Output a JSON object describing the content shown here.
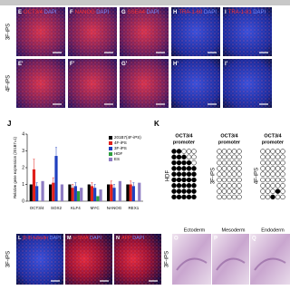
{
  "rows": [
    {
      "label": "3F-iPS",
      "panels": [
        {
          "letter": "E",
          "stain": "OCT3/4",
          "counterstain": "DAPI"
        },
        {
          "letter": "F",
          "stain": "NANOG",
          "counterstain": "DAPI"
        },
        {
          "letter": "G",
          "stain": "SSEA4",
          "counterstain": "DAPI"
        },
        {
          "letter": "H",
          "stain": "TRA-1-60",
          "counterstain": "DAPI"
        },
        {
          "letter": "I",
          "stain": "TRA-1-81",
          "counterstain": "DAPI"
        }
      ]
    },
    {
      "label": "4F-iPS",
      "panels": [
        {
          "letter": "E'"
        },
        {
          "letter": "F'"
        },
        {
          "letter": "G'"
        },
        {
          "letter": "H'"
        },
        {
          "letter": "I'"
        }
      ]
    }
  ],
  "panel_j": {
    "letter": "J",
    "chart": {
      "type": "bar",
      "y_label": "Relative gene expression (201B7=1)",
      "categories": [
        "OCT3/4",
        "SOX2",
        "KLF4",
        "MYC",
        "NANOG",
        "REX1"
      ],
      "series": [
        {
          "name": "201B7(4F-iPS)",
          "color": "#000000",
          "values": [
            1,
            1,
            1,
            1,
            1,
            1
          ]
        },
        {
          "name": "4F-iPS",
          "color": "#e0201b",
          "values": [
            1.9,
            1.1,
            0.8,
            0.9,
            1.0,
            1.0
          ],
          "errors": [
            0.6,
            0.3,
            0.2,
            0.2,
            0.2,
            0.2
          ]
        },
        {
          "name": "3F-iPS",
          "color": "#1f3fbf",
          "values": [
            0.9,
            2.7,
            0.9,
            0.8,
            0.8,
            0.9
          ],
          "errors": [
            0.2,
            0.5,
            0.2,
            0.2,
            0.2,
            0.2
          ]
        },
        {
          "name": "HDF",
          "color": "#2e9e3e",
          "values": [
            0,
            0,
            0.6,
            0.3,
            0,
            0
          ]
        },
        {
          "name": "ES",
          "color": "#8e7cc3",
          "values": [
            1.2,
            1.0,
            0.8,
            0.7,
            1.2,
            1.1
          ]
        }
      ],
      "ylim": [
        0,
        4
      ],
      "yticks": [
        0,
        1,
        2,
        3,
        4
      ]
    }
  },
  "panel_k": {
    "letter": "K",
    "columns": [
      {
        "title": "OCT3/4",
        "subtitle": "promoter",
        "label": "HDF",
        "methylation": [
          [
            1,
            1,
            0,
            0,
            0
          ],
          [
            1,
            1,
            1,
            0,
            0
          ],
          [
            1,
            1,
            1,
            1,
            0
          ],
          [
            1,
            1,
            1,
            1,
            1
          ],
          [
            1,
            1,
            1,
            1,
            1
          ],
          [
            1,
            1,
            1,
            1,
            1
          ],
          [
            1,
            1,
            1,
            1,
            1
          ],
          [
            1,
            1,
            1,
            1,
            1
          ],
          [
            1,
            1,
            1,
            1,
            1
          ]
        ]
      },
      {
        "title": "OCT3/4",
        "subtitle": "promoter",
        "label": "3F-iPS",
        "methylation": [
          [
            0,
            0,
            0,
            0,
            0
          ],
          [
            0,
            0,
            0,
            0,
            0
          ],
          [
            0,
            0,
            0,
            0,
            0
          ],
          [
            0,
            0,
            0,
            0,
            0
          ],
          [
            0,
            0,
            0,
            0,
            0
          ],
          [
            0,
            0,
            0,
            0,
            0
          ],
          [
            0,
            0,
            0,
            0,
            0
          ],
          [
            0,
            0,
            0,
            0,
            0
          ],
          [
            0,
            0,
            0,
            0,
            0
          ]
        ]
      },
      {
        "title": "OCT3/4",
        "subtitle": "promoter",
        "label": "4F-iPS",
        "methylation": [
          [
            0,
            0,
            0,
            0,
            0
          ],
          [
            0,
            0,
            0,
            0,
            0
          ],
          [
            0,
            0,
            0,
            0,
            0
          ],
          [
            0,
            0,
            0,
            0,
            0
          ],
          [
            0,
            0,
            0,
            0,
            0
          ],
          [
            0,
            0,
            0,
            0,
            0
          ],
          [
            0,
            0,
            0,
            0,
            0
          ],
          [
            0,
            0,
            0,
            1,
            0
          ],
          [
            0,
            0,
            1,
            0,
            0
          ]
        ]
      }
    ]
  },
  "bottom": {
    "row_label": "3F-iPS",
    "panels": [
      {
        "letter": "L",
        "stain": "β-III-tubulin",
        "counterstain": "DAPI"
      },
      {
        "letter": "M",
        "stain": "α-SMA",
        "counterstain": "DAPI"
      },
      {
        "letter": "N",
        "stain": "AFP",
        "counterstain": "DAPI"
      }
    ],
    "histology_row_label": "3F-iPS",
    "histology": [
      {
        "letter": "O",
        "label": "Ectoderm"
      },
      {
        "letter": "P",
        "label": "Mesoderm"
      },
      {
        "letter": "Q",
        "label": "Endoderm"
      }
    ]
  }
}
